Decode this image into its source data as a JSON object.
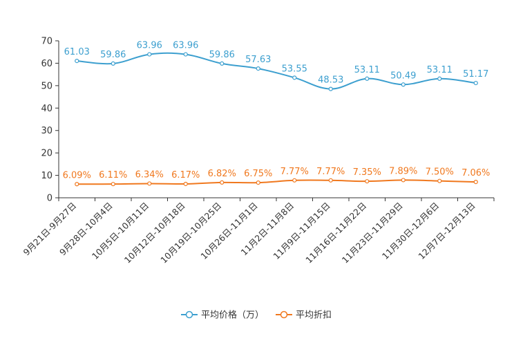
{
  "chart_data": {
    "type": "line",
    "title": "",
    "xlabel": "",
    "ylabel": "",
    "ylim": [
      0,
      70
    ],
    "yticks": [
      0,
      10,
      20,
      30,
      40,
      50,
      60,
      70
    ],
    "grid": false,
    "legend_position": "bottom-center",
    "categories": [
      "9月21日-9月27日",
      "9月28日-10月4日",
      "10月5日-10月11日",
      "10月12日-10月18日",
      "10月19日-10月25日",
      "10月26日-11月1日",
      "11月2日-11月8日",
      "11月9日-11月15日",
      "11月16日-11月22日",
      "11月23日-11月29日",
      "11月30日-12月6日",
      "12月7日-12月13日"
    ],
    "series": [
      {
        "name": "平均价格（万）",
        "color": "#3c9fcf",
        "values": [
          61.03,
          59.86,
          63.96,
          63.96,
          59.86,
          57.63,
          53.55,
          48.53,
          53.11,
          50.49,
          53.11,
          51.17
        ],
        "labels": [
          "61.03",
          "59.86",
          "63.96",
          "63.96",
          "59.86",
          "57.63",
          "53.55",
          "48.53",
          "53.11",
          "50.49",
          "53.11",
          "51.17"
        ]
      },
      {
        "name": "平均折扣",
        "color": "#f0781e",
        "values": [
          6.09,
          6.11,
          6.34,
          6.17,
          6.82,
          6.75,
          7.77,
          7.77,
          7.35,
          7.89,
          7.5,
          7.06
        ],
        "labels": [
          "6.09%",
          "6.11%",
          "6.34%",
          "6.17%",
          "6.82%",
          "6.75%",
          "7.77%",
          "7.77%",
          "7.35%",
          "7.89%",
          "7.50%",
          "7.06%"
        ]
      }
    ]
  }
}
